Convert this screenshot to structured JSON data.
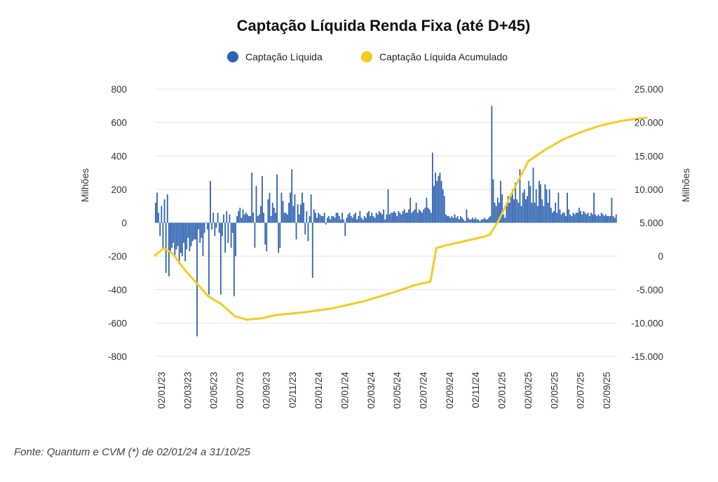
{
  "chart_data": {
    "type": "bar",
    "title": "Captação Líquida Renda Fixa (até D+45)",
    "legend": [
      "Captação Líquida",
      "Captação Líquida Acumulado"
    ],
    "legend_placement": "top",
    "colors": {
      "bars": "#2E63B1",
      "line": "#F5CC22",
      "grid": "#e4e4e4"
    },
    "y_left": {
      "label": "Milhões",
      "ticks": [
        "800",
        "600",
        "400",
        "200",
        "0",
        "-200",
        "-400",
        "-600",
        "-800"
      ],
      "range": [
        -800,
        800
      ]
    },
    "y_right": {
      "label": "Milhões",
      "ticks": [
        "25.000",
        "20.000",
        "15.000",
        "10.000",
        "5.000",
        "0",
        "-5.000",
        "-10.000",
        "-15.000"
      ],
      "range": [
        -15000,
        25000
      ]
    },
    "x_ticks": [
      "02/01/23",
      "02/03/23",
      "02/05/23",
      "02/07/23",
      "02/09/23",
      "02/11/23",
      "02/01/24",
      "02/01/24",
      "02/03/24",
      "02/05/24",
      "02/07/24",
      "02/09/24",
      "02/11/24",
      "02/01/25",
      "02/03/25",
      "02/05/25",
      "02/07/25",
      "02/09/25"
    ],
    "grid": true,
    "series": [
      {
        "name": "Captação Líquida",
        "type": "bar",
        "values": [
          120,
          180,
          60,
          -80,
          100,
          -160,
          140,
          -300,
          170,
          -320,
          -180,
          -150,
          -120,
          -200,
          -160,
          -140,
          -250,
          -180,
          -200,
          -120,
          -230,
          -160,
          -90,
          -170,
          -140,
          -110,
          -100,
          -100,
          -680,
          -40,
          -120,
          -90,
          -200,
          -60,
          0,
          -40,
          -430,
          250,
          -40,
          60,
          -80,
          -30,
          60,
          -60,
          -430,
          -80,
          50,
          -180,
          70,
          -120,
          50,
          -150,
          -60,
          -440,
          -200,
          40,
          70,
          90,
          30,
          80,
          50,
          60,
          50,
          40,
          40,
          300,
          60,
          -150,
          220,
          40,
          50,
          100,
          280,
          60,
          -130,
          -170,
          140,
          180,
          40,
          120,
          90,
          60,
          290,
          -180,
          -150,
          180,
          130,
          60,
          60,
          50,
          120,
          180,
          320,
          100,
          170,
          -100,
          110,
          50,
          110,
          180,
          120,
          -70,
          70,
          -110,
          40,
          170,
          -330,
          80,
          60,
          30,
          60,
          50,
          40,
          40,
          60,
          -10,
          30,
          40,
          20,
          40,
          40,
          30,
          60,
          60,
          40,
          20,
          60,
          20,
          -80,
          30,
          50,
          60,
          40,
          30,
          50,
          60,
          20,
          40,
          70,
          30,
          20,
          40,
          30,
          60,
          70,
          40,
          60,
          40,
          30,
          60,
          50,
          70,
          60,
          50,
          80,
          20,
          50,
          200,
          50,
          60,
          60,
          70,
          60,
          40,
          70,
          60,
          50,
          70,
          80,
          60,
          60,
          80,
          150,
          60,
          70,
          80,
          120,
          60,
          80,
          70,
          60,
          80,
          90,
          150,
          90,
          80,
          60,
          420,
          220,
          300,
          250,
          280,
          300,
          250,
          200,
          160,
          50,
          40,
          40,
          30,
          40,
          30,
          50,
          30,
          40,
          20,
          40,
          30,
          20,
          10,
          80,
          30,
          20,
          20,
          30,
          20,
          30,
          20,
          20,
          10,
          20,
          20,
          30,
          20,
          20,
          30,
          40,
          700,
          260,
          120,
          100,
          150,
          120,
          250,
          170,
          50,
          30,
          100,
          160,
          120,
          160,
          200,
          140,
          240,
          140,
          120,
          320,
          100,
          180,
          200,
          140,
          160,
          250,
          220,
          120,
          330,
          120,
          200,
          100,
          250,
          230,
          140,
          100,
          230,
          200,
          120,
          200,
          90,
          60,
          70,
          120,
          60,
          180,
          80,
          50,
          60,
          60,
          40,
          180,
          80,
          50,
          40,
          60,
          50,
          60,
          60,
          90,
          70,
          50,
          70,
          60,
          50,
          60,
          40,
          60,
          50,
          180,
          50,
          40,
          50,
          40,
          60,
          50,
          40,
          50,
          40,
          40,
          40,
          150,
          40,
          30,
          50
        ]
      },
      {
        "name": "Captação Líquida Acumulado",
        "type": "line",
        "axis": "right",
        "x_index": [
          0,
          6,
          12,
          20,
          28,
          36,
          45,
          54,
          62,
          72,
          82,
          92,
          104,
          120,
          140,
          160,
          176,
          186,
          190,
          196,
          204,
          214,
          222,
          226,
          232,
          240,
          252,
          264,
          276,
          288,
          300,
          314,
          326,
          332
        ],
        "values": [
          100,
          1200,
          400,
          -2000,
          -4000,
          -6000,
          -7200,
          -9000,
          -9500,
          -9300,
          -8800,
          -8600,
          -8300,
          -7800,
          -6800,
          -5500,
          -4300,
          -3800,
          1200,
          1600,
          2000,
          2500,
          2900,
          3200,
          5300,
          9000,
          14200,
          16000,
          17500,
          18600,
          19500,
          20200,
          20600,
          20700
        ]
      }
    ],
    "source": "Fonte: Quantum e CVM (*) de 02/01/24 a 31/10/25"
  }
}
